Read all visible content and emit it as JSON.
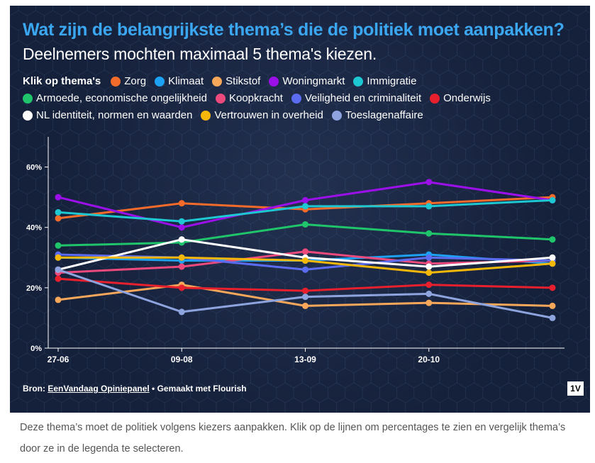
{
  "header": {
    "title": "Wat zijn de belangrijkste thema’s die de politiek moet aanpakken?",
    "subtitle": "Deelnemers mochten maximaal 5 thema's kiezen."
  },
  "legend": {
    "label": "Klik op thema's"
  },
  "footer": {
    "source_prefix": "Bron: ",
    "source_link": "EenVandaag Opiniepanel",
    "source_suffix": " • Gemaakt met Flourish",
    "badge": "1V"
  },
  "caption": "Deze thema’s moet de politiek volgens kiezers aanpakken. Klik op de lijnen om percentages te zien en vergelijk thema’s door ze in de legenda te selecteren.",
  "chart_data": {
    "type": "line",
    "title": "Wat zijn de belangrijkste thema’s die de politiek moet aanpakken?",
    "x": [
      "27-06",
      "09-08",
      "13-09",
      "20-10",
      ""
    ],
    "xticks": [
      "27-06",
      "09-08",
      "13-09",
      "20-10"
    ],
    "ylim": [
      0,
      70
    ],
    "yticks": [
      0,
      20,
      40,
      60
    ],
    "ytick_labels": [
      "0%",
      "20%",
      "40%",
      "60%"
    ],
    "xlabel": "",
    "ylabel": "",
    "grid": false,
    "series": [
      {
        "name": "Zorg",
        "color": "#f26b2a",
        "values": [
          43,
          48,
          46,
          48,
          50
        ]
      },
      {
        "name": "Klimaat",
        "color": "#1da1f2",
        "values": [
          30,
          29,
          29,
          31,
          28
        ]
      },
      {
        "name": "Stikstof",
        "color": "#f7a75a",
        "values": [
          16,
          21,
          14,
          15,
          14
        ]
      },
      {
        "name": "Woningmarkt",
        "color": "#9b10e8",
        "values": [
          50,
          40,
          49,
          55,
          49
        ]
      },
      {
        "name": "Immigratie",
        "color": "#1ec8d2",
        "values": [
          45,
          42,
          47,
          47,
          49
        ]
      },
      {
        "name": "Armoede, economische ongelijkheid",
        "color": "#1fc46b",
        "values": [
          34,
          35,
          41,
          38,
          36
        ]
      },
      {
        "name": "Koopkracht",
        "color": "#ec4a7c",
        "values": [
          25,
          27,
          32,
          28,
          29
        ]
      },
      {
        "name": "Veiligheid en criminaliteit",
        "color": "#5c6cf0",
        "values": [
          31,
          30,
          26,
          30,
          29
        ]
      },
      {
        "name": "Onderwijs",
        "color": "#e8202e",
        "values": [
          23,
          20,
          19,
          21,
          20
        ]
      },
      {
        "name": "NL identiteit, normen en waarden",
        "color": "#ffffff",
        "values": [
          26,
          36,
          30,
          27,
          30
        ]
      },
      {
        "name": "Vertrouwen in overheid",
        "color": "#f4b80a",
        "values": [
          30,
          30,
          29,
          25,
          28
        ]
      },
      {
        "name": "Toeslagenaffaire",
        "color": "#8ea4df",
        "values": [
          26,
          12,
          17,
          18,
          10
        ]
      }
    ]
  }
}
